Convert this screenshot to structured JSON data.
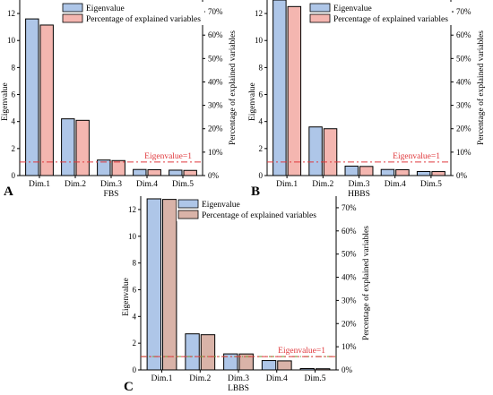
{
  "chart_data": [
    {
      "type": "bar",
      "panel": "A",
      "xlabel": "FBS",
      "ylabel": "Eigenvalue",
      "y2label": "Percentage of explained variables",
      "categories": [
        "Dim.1",
        "Dim.2",
        "Dim.3",
        "Dim.4",
        "Dim.5"
      ],
      "ylim": [
        0,
        13
      ],
      "yticks": [
        0,
        2,
        4,
        6,
        8,
        10,
        12
      ],
      "y2lim": [
        0,
        75
      ],
      "y2ticks": [
        "0%",
        "10%",
        "20%",
        "30%",
        "40%",
        "50%",
        "60%",
        "70%"
      ],
      "y2tick_values": [
        0,
        10,
        20,
        30,
        40,
        50,
        60,
        70
      ],
      "series": [
        {
          "name": "Eigenvalue",
          "axis": "left",
          "color": "#aec6e8",
          "values": [
            11.6,
            4.2,
            1.15,
            0.45,
            0.4
          ]
        },
        {
          "name": "Percentage of explained variables",
          "axis": "right",
          "color": "#f4b6b0",
          "values": [
            64.3,
            23.6,
            6.4,
            2.5,
            2.2
          ]
        }
      ],
      "threshold": {
        "value": 1,
        "label": "Eigenvalue=1",
        "color": "#e0383c"
      },
      "legend": "top"
    },
    {
      "type": "bar",
      "panel": "B",
      "xlabel": "HBBS",
      "ylabel": "Eigenvalue",
      "y2label": "Percentage of explained variables",
      "categories": [
        "Dim.1",
        "Dim.2",
        "Dim.3",
        "Dim.4",
        "Dim.5"
      ],
      "ylim": [
        0,
        13
      ],
      "yticks": [
        0,
        2,
        4,
        6,
        8,
        10,
        12
      ],
      "y2lim": [
        0,
        75
      ],
      "y2ticks": [
        "0%",
        "10%",
        "20%",
        "30%",
        "40%",
        "50%",
        "60%",
        "70%"
      ],
      "y2tick_values": [
        0,
        10,
        20,
        30,
        40,
        50,
        60,
        70
      ],
      "series": [
        {
          "name": "Eigenvalue",
          "axis": "left",
          "color": "#aec6e8",
          "values": [
            13.0,
            3.6,
            0.7,
            0.45,
            0.3
          ]
        },
        {
          "name": "Percentage of explained variables",
          "axis": "right",
          "color": "#f4b6b0",
          "values": [
            72.2,
            20.0,
            3.9,
            2.5,
            1.7
          ]
        }
      ],
      "threshold": {
        "value": 1,
        "label": "Eigenvalue=1",
        "color": "#e0383c"
      },
      "legend": "top"
    },
    {
      "type": "bar",
      "panel": "C",
      "xlabel": "LBBS",
      "ylabel": "Eigenvalue",
      "y2label": "Percentage of explained variables",
      "categories": [
        "Dim.1",
        "Dim.2",
        "Dim.3",
        "Dim.4",
        "Dim.5"
      ],
      "ylim": [
        0,
        13
      ],
      "yticks": [
        0,
        2,
        4,
        6,
        8,
        10,
        12
      ],
      "y2lim": [
        0,
        75
      ],
      "y2ticks": [
        "0%",
        "10%",
        "20%",
        "30%",
        "40%",
        "50%",
        "60%",
        "70%"
      ],
      "y2tick_values": [
        0,
        10,
        20,
        30,
        40,
        50,
        60,
        70
      ],
      "series": [
        {
          "name": "Eigenvalue",
          "axis": "left",
          "color": "#aec6e8",
          "values": [
            12.8,
            2.7,
            1.2,
            0.7,
            0.1
          ]
        },
        {
          "name": "Percentage of explained variables",
          "axis": "right",
          "color": "#d9b3a8",
          "values": [
            73.6,
            15.2,
            6.9,
            3.9,
            0.5
          ]
        }
      ],
      "threshold": {
        "value": 1,
        "label": "Eigenvalue=1",
        "color": "#e0383c"
      },
      "threshold_color2": "#7a9a3a",
      "legend": "top"
    }
  ]
}
